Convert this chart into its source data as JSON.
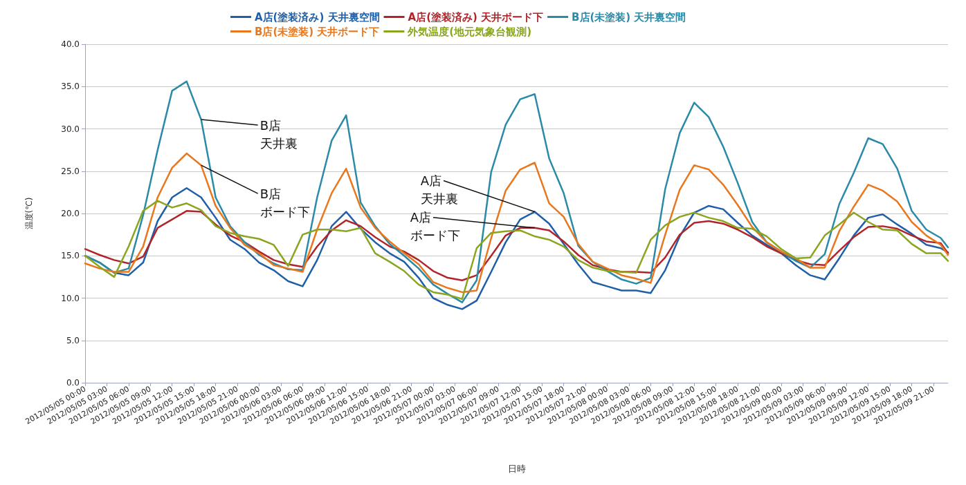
{
  "chart_data": {
    "type": "line",
    "xlabel": "日時",
    "ylabel": "温度(℃)",
    "x": [
      "2012-05-05T00:00",
      "2012-05-05T02:00",
      "2012-05-05T04:00",
      "2012-05-05T06:00",
      "2012-05-05T08:00",
      "2012-05-05T10:00",
      "2012-05-05T12:00",
      "2012-05-05T14:00",
      "2012-05-05T16:00",
      "2012-05-05T18:00",
      "2012-05-05T20:00",
      "2012-05-05T22:00",
      "2012-05-06T00:00",
      "2012-05-06T02:00",
      "2012-05-06T04:00",
      "2012-05-06T06:00",
      "2012-05-06T08:00",
      "2012-05-06T10:00",
      "2012-05-06T12:00",
      "2012-05-06T14:00",
      "2012-05-06T16:00",
      "2012-05-06T18:00",
      "2012-05-06T20:00",
      "2012-05-06T22:00",
      "2012-05-07T00:00",
      "2012-05-07T02:00",
      "2012-05-07T04:00",
      "2012-05-07T06:00",
      "2012-05-07T08:00",
      "2012-05-07T10:00",
      "2012-05-07T12:00",
      "2012-05-07T14:00",
      "2012-05-07T16:00",
      "2012-05-07T18:00",
      "2012-05-07T20:00",
      "2012-05-07T22:00",
      "2012-05-08T00:00",
      "2012-05-08T02:00",
      "2012-05-08T04:00",
      "2012-05-08T06:00",
      "2012-05-08T08:00",
      "2012-05-08T10:00",
      "2012-05-08T12:00",
      "2012-05-08T14:00",
      "2012-05-08T16:00",
      "2012-05-08T18:00",
      "2012-05-08T20:00",
      "2012-05-08T22:00",
      "2012-05-09T00:00",
      "2012-05-09T02:00",
      "2012-05-09T04:00",
      "2012-05-09T06:00",
      "2012-05-09T08:00",
      "2012-05-09T10:00",
      "2012-05-09T12:00",
      "2012-05-09T14:00",
      "2012-05-09T16:00",
      "2012-05-09T18:00",
      "2012-05-09T20:00",
      "2012-05-09T22:00",
      "2012-05-09T23:00"
    ],
    "series": [
      {
        "name": "A店(塗装済み) 天井裏空間",
        "color": "#1f5fa8",
        "values": [
          15,
          14.2,
          13,
          12.7,
          14.2,
          19.1,
          21.9,
          23,
          21.9,
          19.5,
          16.9,
          15.8,
          14.2,
          13.3,
          12,
          11.4,
          14.5,
          18.5,
          20.2,
          18.2,
          16.6,
          15.3,
          14.3,
          12.4,
          10,
          9.2,
          8.7,
          9.7,
          13.1,
          16.6,
          19.3,
          20.2,
          18.8,
          16.4,
          14,
          11.9,
          11.4,
          10.9,
          10.9,
          10.6,
          13.3,
          17.3,
          20.1,
          20.9,
          20.5,
          18.9,
          17.4,
          16.3,
          15.3,
          13.9,
          12.7,
          12.2,
          14.7,
          17.4,
          19.5,
          19.9,
          18.7,
          17.6,
          16.3,
          15.9,
          15.4
        ]
      },
      {
        "name": "A店(塗装済み) 天井ボード下",
        "color": "#b0242a",
        "values": [
          15.8,
          15.1,
          14.5,
          14.1,
          14.9,
          18.3,
          19.3,
          20.3,
          20.2,
          18.7,
          17.4,
          16.6,
          15.5,
          14.5,
          14,
          13.7,
          16.1,
          18,
          19.2,
          18.5,
          17.2,
          16.1,
          15.5,
          14.5,
          13.2,
          12.4,
          12.1,
          12.7,
          15,
          17.4,
          18.3,
          18.3,
          18,
          16.7,
          15.1,
          13.9,
          13.4,
          13.1,
          13.1,
          13,
          14.8,
          17.5,
          18.9,
          19.1,
          18.8,
          18.1,
          17.2,
          16.1,
          15.3,
          14.5,
          14,
          13.9,
          15.6,
          17.2,
          18.4,
          18.5,
          18.2,
          17.4,
          16.7,
          16.5,
          15.3
        ]
      },
      {
        "name": "B店(未塗装) 天井裏空間",
        "color": "#2a8aa8",
        "values": [
          15,
          14.2,
          13,
          13.5,
          19.8,
          27.5,
          34.5,
          35.6,
          31.1,
          21.9,
          18.5,
          16.6,
          15.1,
          14.1,
          13.4,
          13.3,
          21.9,
          28.6,
          31.6,
          21.3,
          18.5,
          16.4,
          15,
          13.5,
          11.6,
          10.5,
          9.5,
          12.1,
          24.9,
          30.5,
          33.5,
          34.1,
          26.5,
          22.4,
          16.2,
          14.3,
          13.2,
          12.2,
          11.7,
          12.4,
          22.9,
          29.5,
          33.1,
          31.4,
          27.9,
          23.6,
          19,
          16.6,
          15.5,
          14.4,
          13.6,
          15.2,
          21.1,
          24.8,
          28.9,
          28.2,
          25.3,
          20.3,
          18.1,
          17.1,
          16
        ]
      },
      {
        "name": "B店(未塗装) 天井ボード下",
        "color": "#e8771e",
        "values": [
          14.1,
          13.5,
          13.1,
          13.1,
          16.1,
          21.9,
          25.4,
          27.1,
          25.7,
          20.9,
          18.3,
          16.3,
          15.3,
          13.9,
          13.5,
          13.1,
          18.1,
          22.4,
          25.3,
          20.7,
          18.3,
          16.7,
          15.3,
          14,
          11.9,
          11.2,
          10.7,
          10.9,
          17.1,
          22.7,
          25.2,
          26,
          21.2,
          19.6,
          16.4,
          14.3,
          13.5,
          12.7,
          12.3,
          11.8,
          17.5,
          22.8,
          25.7,
          25.2,
          23.4,
          21,
          18.4,
          16.6,
          15.5,
          14.7,
          13.6,
          13.6,
          17.9,
          20.8,
          23.4,
          22.7,
          21.4,
          19,
          17.4,
          16.3,
          15.1
        ]
      },
      {
        "name": "外気温度(地元気象台観測)",
        "color": "#8aa51e",
        "values": [
          15,
          13.7,
          12.5,
          16.1,
          20.3,
          21.5,
          20.7,
          21.2,
          20.4,
          18.5,
          17.7,
          17.3,
          17,
          16.3,
          13.8,
          17.5,
          18.1,
          18.1,
          17.9,
          18.3,
          15.3,
          14.3,
          13.2,
          11.6,
          10.7,
          10.4,
          9.9,
          15.9,
          17.7,
          17.9,
          18,
          17.3,
          16.9,
          16.1,
          14.5,
          13.6,
          13.2,
          13.1,
          13,
          16.9,
          18.6,
          19.6,
          20.1,
          19.5,
          19.1,
          18.3,
          18.2,
          17.3,
          15.8,
          14.7,
          14.8,
          17.4,
          18.7,
          20.1,
          19,
          18.1,
          18,
          16.4,
          15.3,
          15.3,
          14.4
        ]
      }
    ],
    "xlim": [
      "2012-05-05T00:00",
      "2012-05-09T23:00"
    ],
    "xticks": [
      {
        "value": "2012-05-05T00:00",
        "label": "2012/05/05 00:00"
      },
      {
        "value": "2012-05-05T03:00",
        "label": "2012/05/05 03:00"
      },
      {
        "value": "2012-05-05T06:00",
        "label": "2012/05/05 06:00"
      },
      {
        "value": "2012-05-05T09:00",
        "label": "2012/05/05 09:00"
      },
      {
        "value": "2012-05-05T12:00",
        "label": "2012/05/05 12:00"
      },
      {
        "value": "2012-05-05T15:00",
        "label": "2012/05/05 15:00"
      },
      {
        "value": "2012-05-05T18:00",
        "label": "2012/05/05 18:00"
      },
      {
        "value": "2012-05-05T21:00",
        "label": "2012/05/05 21:00"
      },
      {
        "value": "2012-05-06T00:00",
        "label": "2012/05/06 00:00"
      },
      {
        "value": "2012-05-06T03:00",
        "label": "2012/05/06 03:00"
      },
      {
        "value": "2012-05-06T06:00",
        "label": "2012/05/06 06:00"
      },
      {
        "value": "2012-05-06T09:00",
        "label": "2012/05/06 09:00"
      },
      {
        "value": "2012-05-06T12:00",
        "label": "2012/05/06 12:00"
      },
      {
        "value": "2012-05-06T15:00",
        "label": "2012/05/06 15:00"
      },
      {
        "value": "2012-05-06T18:00",
        "label": "2012/05/06 18:00"
      },
      {
        "value": "2012-05-06T21:00",
        "label": "2012/05/06 21:00"
      },
      {
        "value": "2012-05-07T00:00",
        "label": "2012/05/07 00:00"
      },
      {
        "value": "2012-05-07T03:00",
        "label": "2012/05/07 03:00"
      },
      {
        "value": "2012-05-07T06:00",
        "label": "2012/05/07 06:00"
      },
      {
        "value": "2012-05-07T09:00",
        "label": "2012/05/07 09:00"
      },
      {
        "value": "2012-05-07T12:00",
        "label": "2012/05/07 12:00"
      },
      {
        "value": "2012-05-07T15:00",
        "label": "2012/05/07 15:00"
      },
      {
        "value": "2012-05-07T18:00",
        "label": "2012/05/07 18:00"
      },
      {
        "value": "2012-05-07T21:00",
        "label": "2012/05/07 21:00"
      },
      {
        "value": "2012-05-08T00:00",
        "label": "2012/05/08 00:00"
      },
      {
        "value": "2012-05-08T03:00",
        "label": "2012/05/08 03:00"
      },
      {
        "value": "2012-05-08T06:00",
        "label": "2012/05/08 06:00"
      },
      {
        "value": "2012-05-08T09:00",
        "label": "2012/05/08 09:00"
      },
      {
        "value": "2012-05-08T12:00",
        "label": "2012/05/08 12:00"
      },
      {
        "value": "2012-05-08T15:00",
        "label": "2012/05/08 15:00"
      },
      {
        "value": "2012-05-08T18:00",
        "label": "2012/05/08 18:00"
      },
      {
        "value": "2012-05-08T21:00",
        "label": "2012/05/08 21:00"
      },
      {
        "value": "2012-05-09T00:00",
        "label": "2012/05/09 00:00"
      },
      {
        "value": "2012-05-09T03:00",
        "label": "2012/05/09 03:00"
      },
      {
        "value": "2012-05-09T06:00",
        "label": "2012/05/09 06:00"
      },
      {
        "value": "2012-05-09T09:00",
        "label": "2012/05/09 09:00"
      },
      {
        "value": "2012-05-09T12:00",
        "label": "2012/05/09 12:00"
      },
      {
        "value": "2012-05-09T15:00",
        "label": "2012/05/09 15:00"
      },
      {
        "value": "2012-05-09T18:00",
        "label": "2012/05/09 18:00"
      },
      {
        "value": "2012-05-09T21:00",
        "label": "2012/05/09 21:00"
      }
    ],
    "ylim": [
      0,
      40
    ],
    "yticks": [
      {
        "value": 0,
        "label": "0.0"
      },
      {
        "value": 5,
        "label": "5.0"
      },
      {
        "value": 10,
        "label": "10.0"
      },
      {
        "value": 15,
        "label": "15.0"
      },
      {
        "value": 20,
        "label": "20.0"
      },
      {
        "value": 25,
        "label": "25.0"
      },
      {
        "value": 30,
        "label": "30.0"
      },
      {
        "value": 35,
        "label": "35.0"
      },
      {
        "value": 40,
        "label": "40.0"
      }
    ],
    "annotations": [
      {
        "text": "B店",
        "x": "2012-05-05T16:00",
        "y": 31.1
      },
      {
        "text": "天井裏",
        "x": "2012-05-05T16:00",
        "y": 31.1
      },
      {
        "text": "B店",
        "x": "2012-05-05T16:00",
        "y": 25.7
      },
      {
        "text": "ボード下",
        "x": "2012-05-05T16:00",
        "y": 25.7
      },
      {
        "text": "A店",
        "x": "2012-05-07T14:00",
        "y": 20.2
      },
      {
        "text": "天井裏",
        "x": "2012-05-07T14:00",
        "y": 20.2
      },
      {
        "text": "A店",
        "x": "2012-05-07T14:00",
        "y": 18.3
      },
      {
        "text": "ボード下",
        "x": "2012-05-07T14:00",
        "y": 18.3
      }
    ],
    "grid": "y",
    "legend": "top",
    "marker": "none",
    "line_style": "solid"
  }
}
